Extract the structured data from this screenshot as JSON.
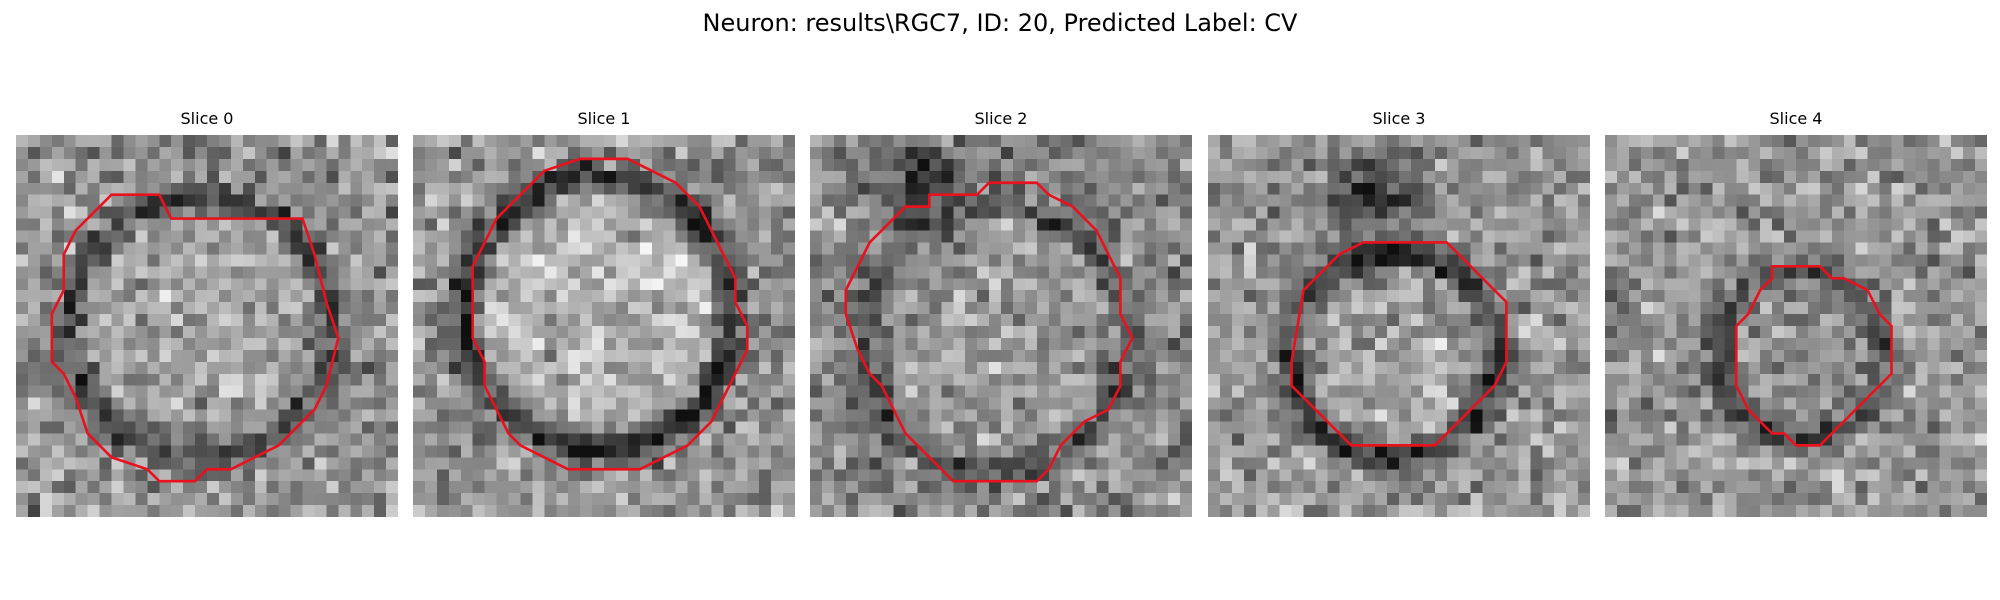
{
  "figure": {
    "title": "Neuron: results\\RGC7, ID: 20, Predicted Label: CV",
    "colormap": "gray",
    "contour_color": "#e8121f"
  },
  "panels": [
    {
      "title": "Slice 0"
    },
    {
      "title": "Slice 1"
    },
    {
      "title": "Slice 2"
    },
    {
      "title": "Slice 3"
    },
    {
      "title": "Slice 4"
    }
  ]
}
